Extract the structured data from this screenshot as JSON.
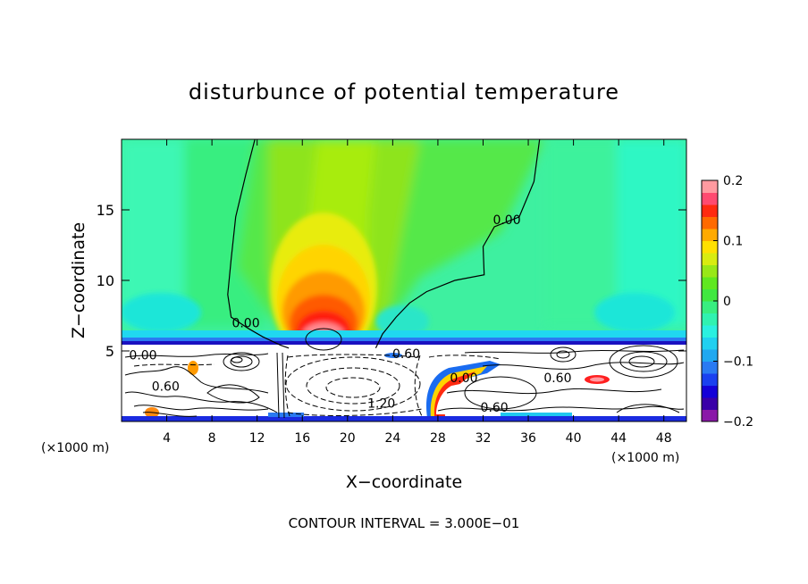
{
  "chart_data": {
    "type": "heatmap",
    "title": "disturbunce of potential temperature",
    "xlabel": "X−coordinate",
    "ylabel": "Z−coordinate",
    "x_unit_left": "(×1000 m)",
    "x_unit_right": "(×1000 m)",
    "xlim": [
      0,
      50
    ],
    "ylim": [
      0,
      20
    ],
    "x_ticks": [
      4,
      8,
      12,
      16,
      20,
      24,
      28,
      32,
      36,
      40,
      44,
      48
    ],
    "y_ticks": [
      5,
      10,
      15
    ],
    "footer": "CONTOUR INTERVAL = 3.000E−01",
    "colorbar": {
      "range": [
        -0.2,
        0.2
      ],
      "tick_values": [
        0.2,
        0.1,
        0,
        -0.1,
        -0.2
      ],
      "tick_labels": [
        "0.2",
        "0.1",
        "0",
        "−0.1",
        "−0.2"
      ],
      "levels": 20
    },
    "contour_labels": [
      {
        "text": "0.00",
        "x": 34.1,
        "z": 14.3
      },
      {
        "text": "0.00",
        "x": 11.0,
        "z": 7.0
      },
      {
        "text": "0.00",
        "x": 1.9,
        "z": 4.7
      },
      {
        "text": "0.60",
        "x": 25.2,
        "z": 4.8
      },
      {
        "text": "0.60",
        "x": 3.9,
        "z": 2.5
      },
      {
        "text": "0.00",
        "x": 30.3,
        "z": 3.1
      },
      {
        "text": "0.60",
        "x": 38.6,
        "z": 3.1
      },
      {
        "text": "1.20",
        "x": 23.0,
        "z": 1.3
      },
      {
        "text": "0.60",
        "x": 33.0,
        "z": 1.0
      }
    ],
    "zero_contour_left": [
      [
        11.8,
        20
      ],
      [
        11.0,
        17.5
      ],
      [
        10.1,
        14.5
      ],
      [
        9.7,
        11.5
      ],
      [
        9.4,
        9.0
      ],
      [
        9.7,
        7.4
      ],
      [
        11.2,
        6.6
      ],
      [
        12.5,
        6.0
      ],
      [
        14.1,
        5.4
      ],
      [
        14.8,
        5.2
      ]
    ],
    "zero_contour_right": [
      [
        37.0,
        20
      ],
      [
        36.5,
        17.0
      ],
      [
        35.2,
        14.5
      ],
      [
        33.0,
        13.8
      ],
      [
        32.0,
        12.4
      ],
      [
        32.1,
        10.4
      ],
      [
        29.5,
        10.0
      ],
      [
        27.0,
        9.2
      ],
      [
        25.5,
        8.4
      ],
      [
        24.3,
        7.4
      ],
      [
        23.1,
        6.2
      ],
      [
        22.5,
        5.2
      ]
    ]
  }
}
